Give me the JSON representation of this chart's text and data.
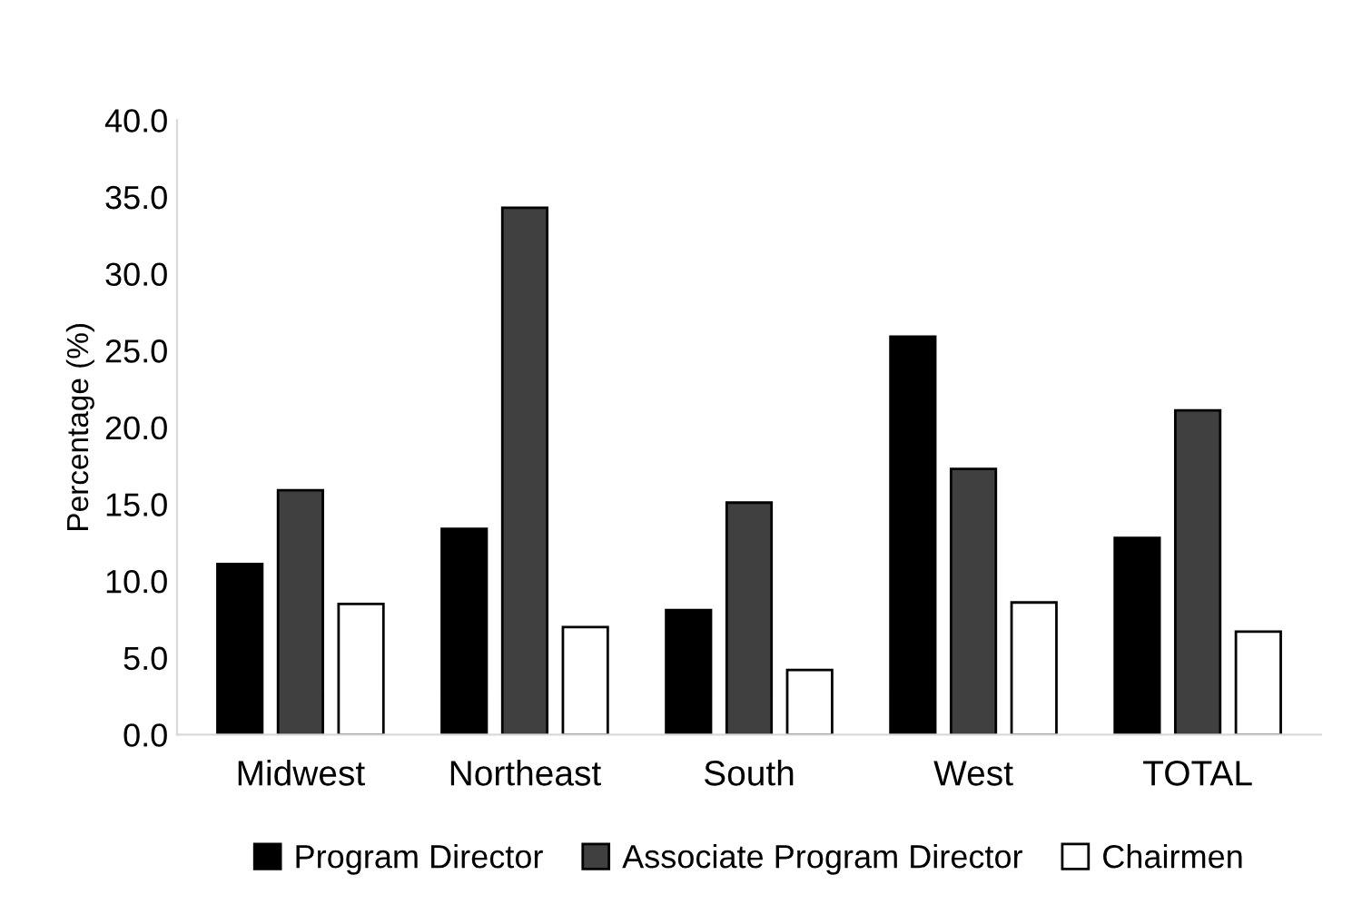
{
  "chart_data": {
    "type": "bar",
    "ylabel": "Percentage (%)",
    "categories": [
      "Midwest",
      "Northeast",
      "South",
      "West",
      "TOTAL"
    ],
    "series": [
      {
        "name": "Program Director",
        "color": "#000000",
        "values": [
          11.1,
          13.4,
          8.1,
          25.9,
          12.8
        ]
      },
      {
        "name": "Associate Program Director",
        "color": "#404040",
        "values": [
          15.9,
          34.3,
          15.1,
          17.3,
          21.1
        ]
      },
      {
        "name": "Chairmen",
        "color": "#ffffff",
        "values": [
          8.5,
          7.0,
          4.2,
          8.6,
          6.7
        ]
      }
    ],
    "ylim": [
      0,
      40
    ],
    "yticks": [
      {
        "value": 0,
        "label": "0.0"
      },
      {
        "value": 5,
        "label": "5.0"
      },
      {
        "value": 10,
        "label": "10.0"
      },
      {
        "value": 15,
        "label": "15.0"
      },
      {
        "value": 20,
        "label": "20.0"
      },
      {
        "value": 25,
        "label": "25.0"
      },
      {
        "value": 30,
        "label": "30.0"
      },
      {
        "value": 35,
        "label": "35.0"
      },
      {
        "value": 40,
        "label": "40.0"
      }
    ],
    "grid": false,
    "legend": "bottom"
  }
}
